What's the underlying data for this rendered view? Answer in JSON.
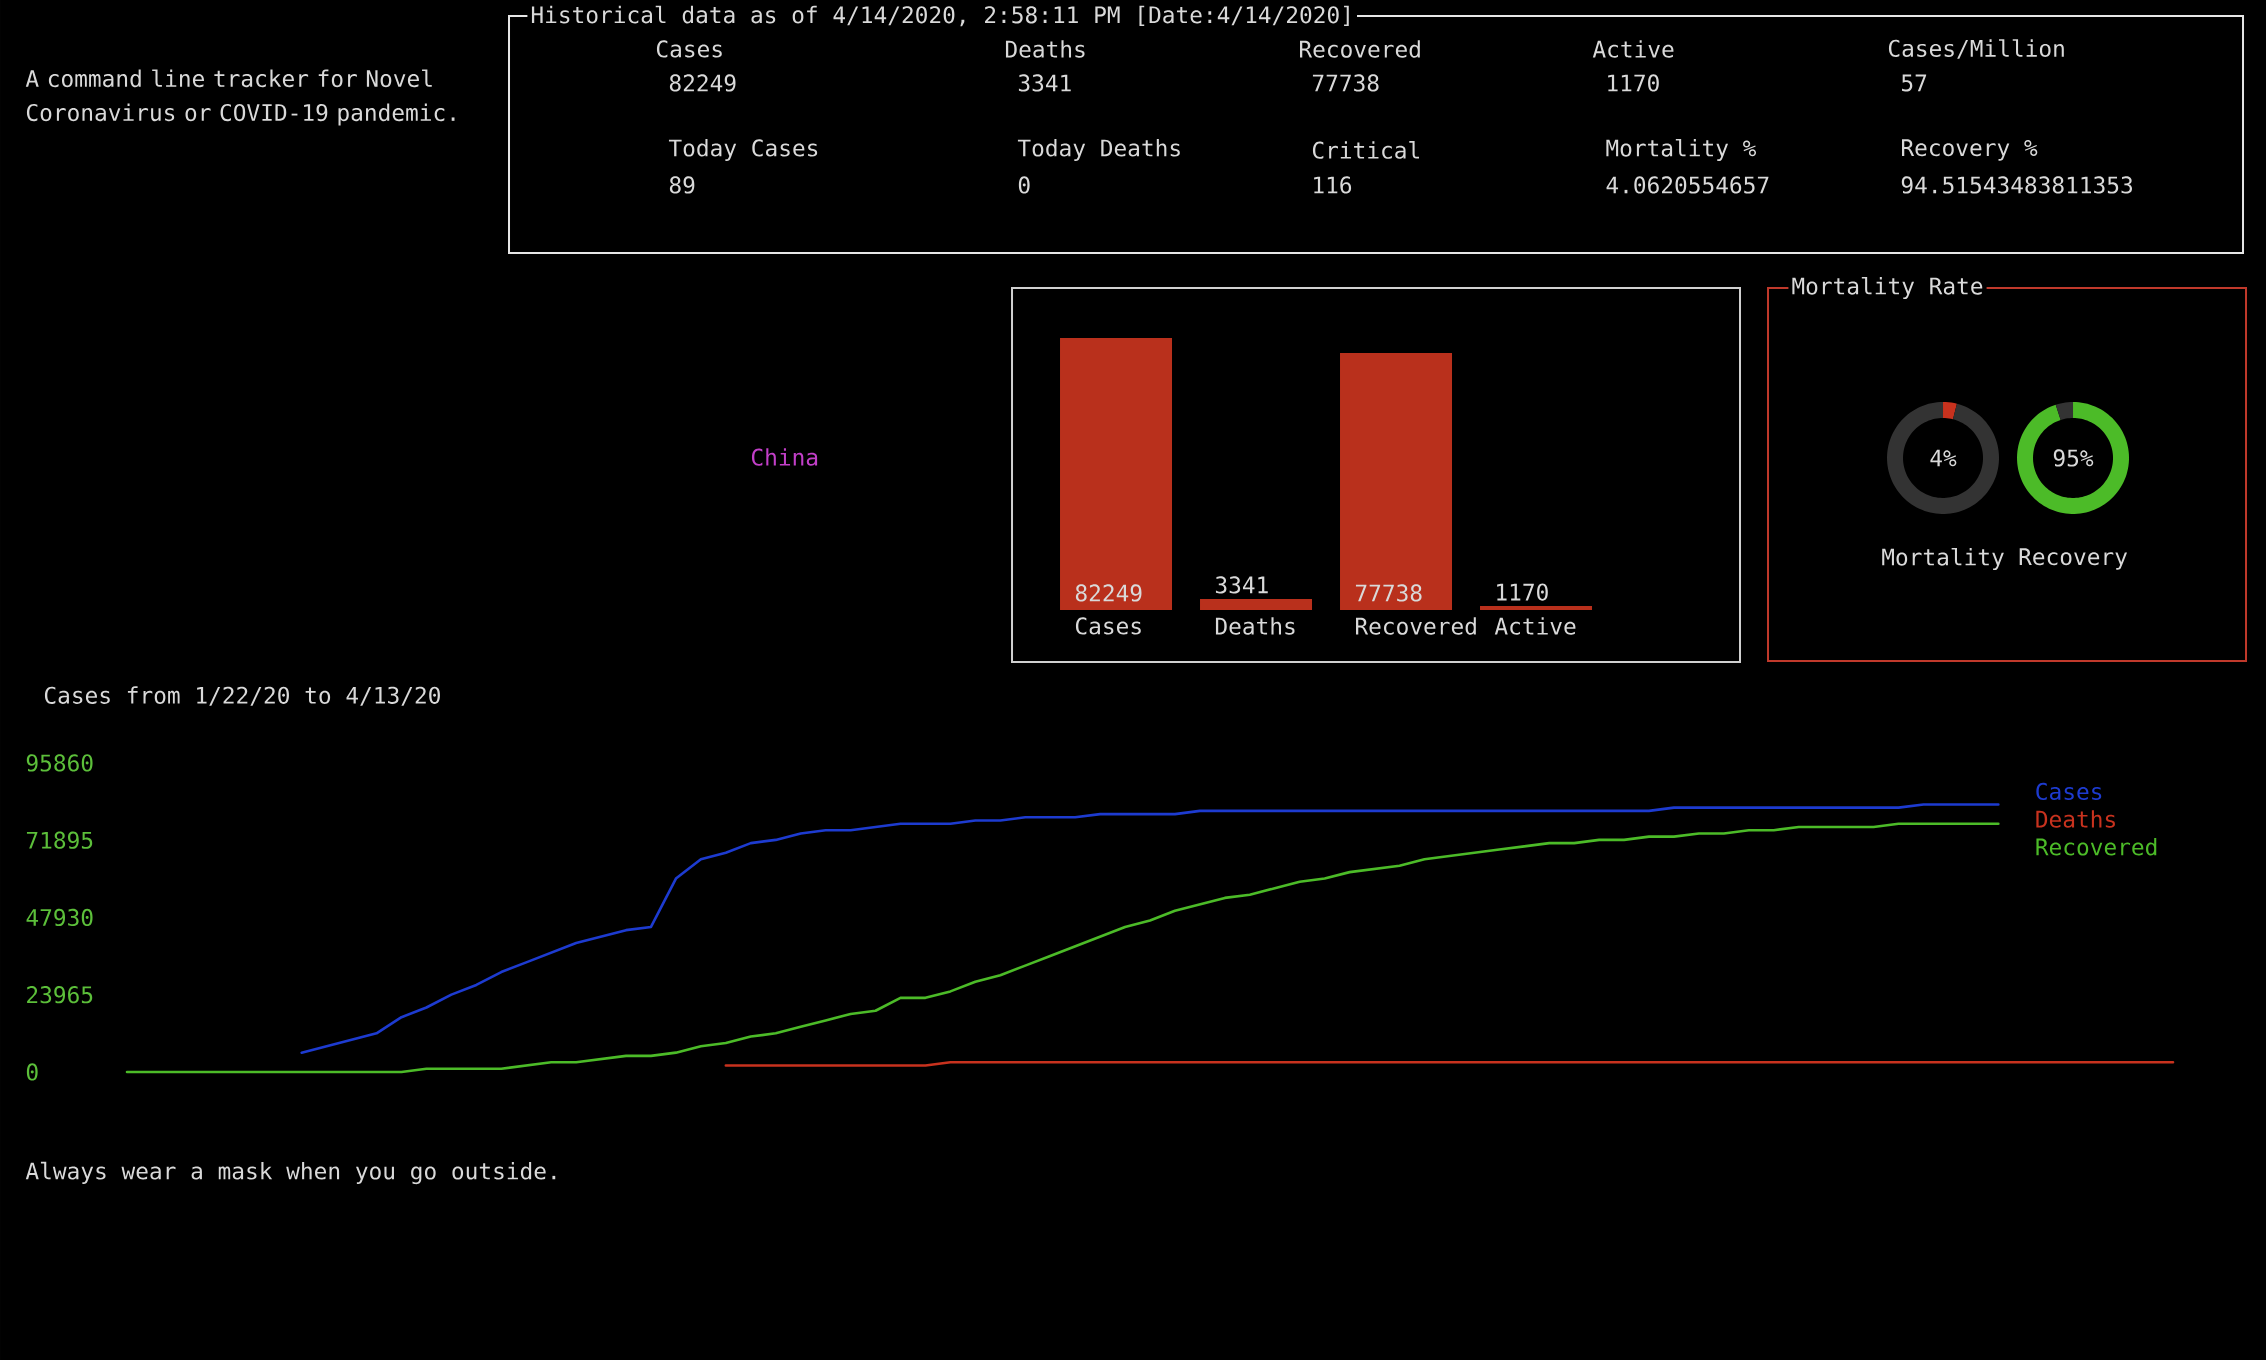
{
  "chart_data": [
    {
      "type": "other",
      "annotations": [
        "A command line tracker for Novel Coronavirus or COVID-19 pandemic."
      ]
    },
    {
      "type": "other",
      "title": "Historical data as of 4/14/2020, 2:58:11 PM [Date:4/14/2020]",
      "categories": [
        "Cases",
        "Deaths",
        "Recovered",
        "Active",
        "Cases/Million",
        "Today Cases",
        "Today Deaths",
        "Critical",
        "Mortality %",
        "Recovery %"
      ],
      "values": [
        82249,
        3341,
        77738,
        1170,
        57,
        89,
        0,
        116,
        4.0620554657,
        94.51543483811353
      ],
      "data_labels": true
    },
    {
      "type": "other",
      "annotations": [
        "China"
      ]
    },
    {
      "type": "bar",
      "categories": [
        "Cases",
        "Deaths",
        "Recovered",
        "Active"
      ],
      "values": [
        82249,
        3341,
        77738,
        1170
      ],
      "color": "#b9301c",
      "data_labels": true
    },
    {
      "type": "other",
      "title": "Mortality Rate"
    },
    {
      "type": "donut",
      "title": "Mortality",
      "categories": [
        null,
        null
      ],
      "values": [
        4,
        96
      ],
      "colors": [
        "#c8321e",
        "#333333"
      ],
      "annotations": [
        "4%"
      ]
    },
    {
      "type": "donut",
      "title": "Recovery",
      "categories": [
        null,
        null
      ],
      "values": [
        95,
        5
      ],
      "colors": [
        "#4cbb28",
        "#333333"
      ],
      "annotations": [
        "95%"
      ]
    },
    {
      "type": "line",
      "title": "Cases from 1/22/20 to 4/13/20",
      "categories": [
        null,
        null,
        null,
        null,
        null,
        null,
        null,
        null,
        null,
        null,
        null,
        null,
        null,
        null,
        null,
        null,
        null,
        null,
        null,
        null,
        null,
        null,
        null,
        null,
        null,
        null,
        null,
        null,
        null,
        null,
        null,
        null,
        null,
        null,
        null,
        null,
        null,
        null,
        null,
        null,
        null,
        null,
        null,
        null,
        null,
        null,
        null,
        null,
        null,
        null,
        null,
        null,
        null,
        null,
        null,
        null,
        null,
        null,
        null,
        null,
        null,
        null,
        null,
        null,
        null,
        null,
        null,
        null,
        null,
        null,
        null,
        null,
        null,
        null,
        null,
        null,
        null,
        null,
        null,
        null,
        null,
        null,
        null
      ],
      "series": [
        {
          "name": "Cases",
          "color": "#1d3bd0",
          "values": [
            null,
            null,
            null,
            null,
            null,
            null,
            null,
            6000,
            8000,
            10000,
            12000,
            17000,
            20000,
            24000,
            27000,
            31000,
            34000,
            37000,
            40000,
            42000,
            44000,
            45000,
            60000,
            66000,
            68000,
            71000,
            72000,
            74000,
            75000,
            75000,
            76000,
            77000,
            77000,
            77000,
            78000,
            78000,
            79000,
            79000,
            79000,
            80000,
            80000,
            80000,
            80000,
            81000,
            81000,
            81000,
            81000,
            81000,
            81000,
            81000,
            81000,
            81000,
            81000,
            81000,
            81000,
            81000,
            81000,
            81000,
            81000,
            81000,
            81000,
            81000,
            82000,
            82000,
            82000,
            82000,
            82000,
            82000,
            82000,
            82000,
            82000,
            82000,
            83000,
            83000,
            83000,
            83000,
            null,
            null,
            null,
            null,
            null,
            null,
            null
          ]
        },
        {
          "name": "Deaths",
          "color": "#c8321e",
          "values": [
            null,
            null,
            null,
            null,
            null,
            null,
            null,
            null,
            null,
            null,
            null,
            null,
            null,
            null,
            null,
            null,
            null,
            null,
            null,
            null,
            null,
            null,
            null,
            null,
            2000,
            2000,
            2000,
            2000,
            2000,
            2000,
            2000,
            2000,
            2000,
            3000,
            3000,
            3000,
            3000,
            3000,
            3000,
            3000,
            3000,
            3000,
            3000,
            3000,
            3000,
            3000,
            3000,
            3000,
            3000,
            3000,
            3000,
            3000,
            3000,
            3000,
            3000,
            3000,
            3000,
            3000,
            3000,
            3000,
            3000,
            3000,
            3000,
            3000,
            3000,
            3000,
            3000,
            3000,
            3000,
            3000,
            3000,
            3000,
            3000,
            3000,
            3000,
            3000,
            3000,
            3000,
            3000,
            3000,
            3000,
            3000,
            3000
          ]
        },
        {
          "name": "Recovered",
          "color": "#4cbb28",
          "values": [
            0,
            0,
            0,
            0,
            0,
            0,
            0,
            0,
            0,
            0,
            0,
            0,
            1000,
            1000,
            1000,
            1000,
            2000,
            3000,
            3000,
            4000,
            5000,
            5000,
            6000,
            8000,
            9000,
            11000,
            12000,
            14000,
            16000,
            18000,
            19000,
            23000,
            23000,
            25000,
            28000,
            30000,
            33000,
            36000,
            39000,
            42000,
            45000,
            47000,
            50000,
            52000,
            54000,
            55000,
            57000,
            59000,
            60000,
            62000,
            63000,
            64000,
            66000,
            67000,
            68000,
            69000,
            70000,
            71000,
            71000,
            72000,
            72000,
            73000,
            73000,
            74000,
            74000,
            75000,
            75000,
            76000,
            76000,
            76000,
            76000,
            77000,
            77000,
            77000,
            77000,
            77000,
            null,
            null,
            null,
            null,
            null,
            null,
            null
          ]
        }
      ],
      "ylim": [
        0,
        95860
      ],
      "yticks": [
        0,
        23965,
        47930,
        71895,
        95860
      ],
      "tick_labels": "y",
      "legend": "top right",
      "annotations": [
        "Always wear a mask when you go outside."
      ]
    }
  ]
}
